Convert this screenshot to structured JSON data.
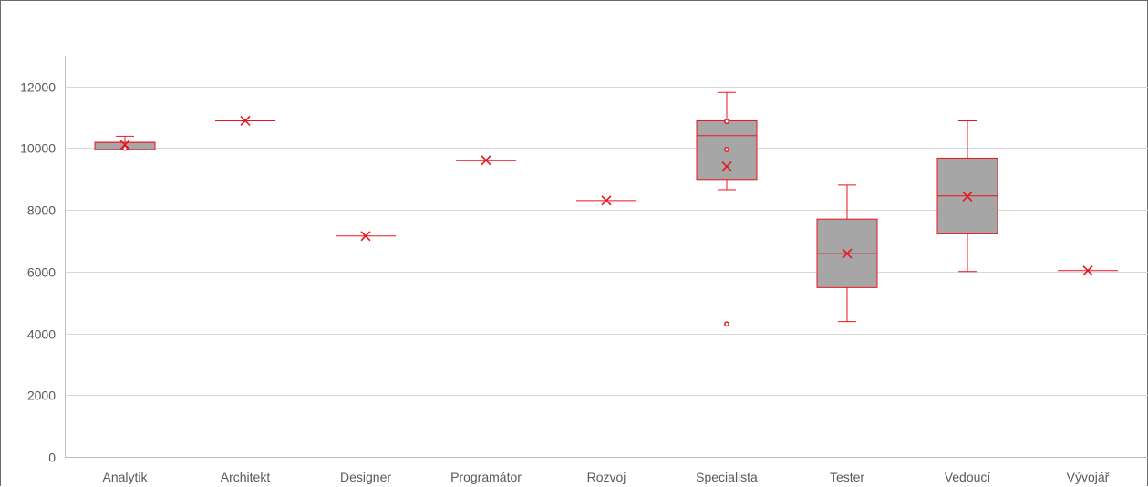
{
  "chart_data": {
    "type": "box",
    "title": "",
    "xlabel": "",
    "ylabel": "",
    "ylim": [
      0,
      12000
    ],
    "yticks": [
      0,
      2000,
      4000,
      6000,
      8000,
      10000,
      12000
    ],
    "grid": "horizontal",
    "legend": "none",
    "categories": [
      "Analytik",
      "Architekt",
      "Designer",
      "Programátor",
      "Rozvoj",
      "Specialista",
      "Tester",
      "Vedoucí",
      "Vývojář"
    ],
    "boxes": [
      {
        "category": "Analytik",
        "min": 9950,
        "q1": 9950,
        "median": 10180,
        "q3": 10180,
        "max": 10380,
        "mean": 10100,
        "outliers": [
          9990
        ]
      },
      {
        "category": "Architekt",
        "min": 10880,
        "q1": 10880,
        "median": 10880,
        "q3": 10880,
        "max": 10880,
        "mean": 10880,
        "outliers": []
      },
      {
        "category": "Designer",
        "min": 7150,
        "q1": 7150,
        "median": 7150,
        "q3": 7150,
        "max": 7150,
        "mean": 7150,
        "outliers": []
      },
      {
        "category": "Programátor",
        "min": 9600,
        "q1": 9600,
        "median": 9600,
        "q3": 9600,
        "max": 9600,
        "mean": 9600,
        "outliers": []
      },
      {
        "category": "Rozvoj",
        "min": 8300,
        "q1": 8300,
        "median": 8300,
        "q3": 8300,
        "max": 8300,
        "mean": 8300,
        "outliers": []
      },
      {
        "category": "Specialista",
        "min": 8650,
        "q1": 8980,
        "median": 10400,
        "q3": 10880,
        "max": 11800,
        "mean": 9400,
        "outliers": [
          10860,
          9950,
          4300
        ]
      },
      {
        "category": "Tester",
        "min": 4380,
        "q1": 5480,
        "median": 6580,
        "q3": 7700,
        "max": 8800,
        "mean": 6580,
        "outliers": []
      },
      {
        "category": "Vedoucí",
        "min": 6000,
        "q1": 7220,
        "median": 8450,
        "q3": 9670,
        "max": 10880,
        "mean": 8430,
        "outliers": []
      },
      {
        "category": "Vývojář",
        "min": 6030,
        "q1": 6030,
        "median": 6030,
        "q3": 6030,
        "max": 6030,
        "mean": 6030,
        "outliers": []
      }
    ],
    "colors": {
      "box_fill": "#a6a6a6",
      "box_stroke": "#e8161c",
      "grid": "#d9d9d9",
      "axis": "#bfbfbf",
      "tick_text": "#595959"
    }
  }
}
